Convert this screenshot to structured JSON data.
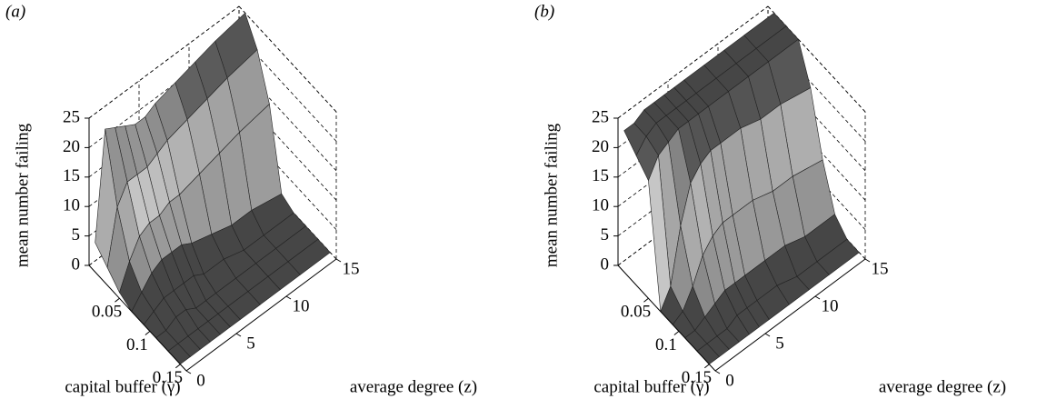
{
  "chart_data": [
    {
      "type": "surface",
      "panel_label": "(a)",
      "x_label": "capital buffer (γ)",
      "y_label": "average degree (z)",
      "z_label": "mean number failing",
      "x": [
        0.01,
        0.03,
        0.05,
        0.07,
        0.09,
        0.11,
        0.13,
        0.15
      ],
      "y": [
        0,
        1,
        2,
        3,
        4,
        5,
        6,
        8,
        10,
        12,
        15
      ],
      "values": [
        [
          5,
          23,
          22,
          21,
          20,
          20,
          21,
          22,
          23,
          24,
          25
        ],
        [
          3,
          12,
          15,
          15,
          15,
          16,
          17,
          18,
          19,
          20,
          21
        ],
        [
          1,
          5,
          8,
          9,
          9,
          10,
          10,
          11,
          12,
          13,
          14
        ],
        [
          0,
          2,
          4,
          5,
          5,
          5,
          4,
          3,
          2,
          2,
          1
        ],
        [
          0,
          1,
          2,
          2,
          2,
          2,
          1,
          1,
          0,
          0,
          0
        ],
        [
          0,
          0,
          1,
          1,
          0,
          0,
          0,
          0,
          0,
          0,
          0
        ],
        [
          0,
          0,
          0,
          0,
          0,
          0,
          0,
          0,
          0,
          0,
          0
        ],
        [
          0,
          0,
          0,
          0,
          0,
          0,
          0,
          0,
          0,
          0,
          0
        ]
      ],
      "xlim": [
        0,
        0.16
      ],
      "ylim": [
        0,
        15
      ],
      "zlim": [
        0,
        25
      ],
      "xticks": [
        0.05,
        0.1,
        0.15
      ],
      "yticks": [
        0,
        5,
        10,
        15
      ],
      "zticks": [
        0,
        5,
        10,
        15,
        20,
        25
      ]
    },
    {
      "type": "surface",
      "panel_label": "(b)",
      "x_label": "capital buffer (γ)",
      "y_label": "average degree (z)",
      "z_label": "mean number failing",
      "x": [
        0.01,
        0.03,
        0.05,
        0.07,
        0.09,
        0.11,
        0.13,
        0.15
      ],
      "y": [
        0,
        1,
        2,
        3,
        4,
        5,
        6,
        8,
        10,
        12,
        15
      ],
      "values": [
        [
          24,
          24,
          25,
          25,
          25,
          25,
          25,
          25,
          25,
          25,
          25
        ],
        [
          22,
          24,
          25,
          25,
          25,
          25,
          25,
          25,
          25,
          25,
          25
        ],
        [
          20,
          23,
          24,
          25,
          25,
          25,
          25,
          25,
          25,
          25,
          25
        ],
        [
          0,
          3,
          12,
          18,
          20,
          21,
          21,
          21,
          20,
          20,
          19
        ],
        [
          0,
          1,
          4,
          8,
          10,
          11,
          11,
          11,
          10,
          10,
          9
        ],
        [
          0,
          0,
          1,
          2,
          3,
          3,
          3,
          3,
          3,
          2,
          2
        ],
        [
          0,
          0,
          0,
          0,
          1,
          1,
          1,
          1,
          0,
          0,
          0
        ],
        [
          0,
          0,
          0,
          0,
          0,
          0,
          0,
          0,
          0,
          0,
          0
        ]
      ],
      "xlim": [
        0,
        0.16
      ],
      "ylim": [
        0,
        15
      ],
      "zlim": [
        0,
        25
      ],
      "xticks": [
        0.05,
        0.1,
        0.15
      ],
      "yticks": [
        0,
        5,
        10,
        15
      ],
      "zticks": [
        0,
        5,
        10,
        15,
        20,
        25
      ]
    }
  ]
}
